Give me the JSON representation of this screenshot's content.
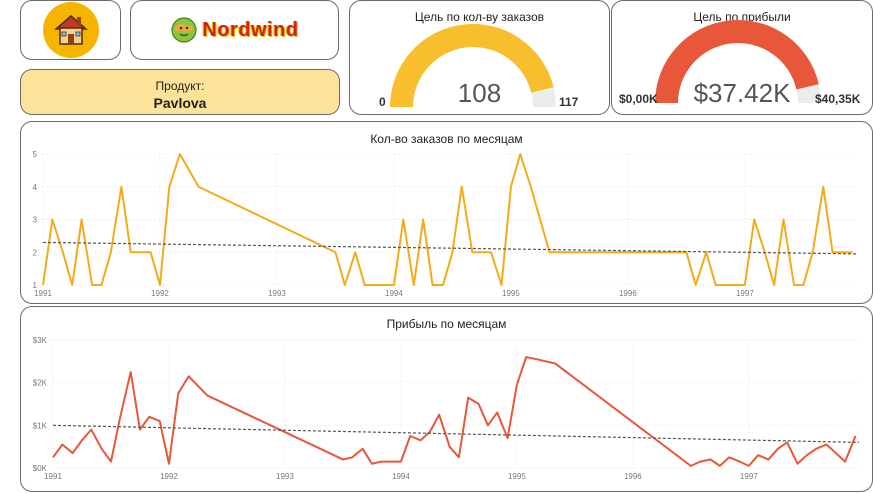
{
  "home": {
    "icon": "house-icon",
    "circle_color": "#f5b400"
  },
  "brand": {
    "name": "Nordwind",
    "icon": "globe-icon"
  },
  "product": {
    "label": "Продукт:",
    "value": "Pavlova"
  },
  "gauge_orders": {
    "title": "Цель по кол-ву заказов",
    "value": 108,
    "value_text": "108",
    "min": 0,
    "min_text": "0",
    "max": 117,
    "max_text": "117",
    "color": "#f8be2e"
  },
  "gauge_profit": {
    "title": "Цель по прибыли",
    "value": 37.42,
    "value_text": "$37.42K",
    "min": 0,
    "min_text": "$0,00K",
    "max": 40.35,
    "max_text": "$40,35K",
    "color": "#e8573a"
  },
  "chart_data": [
    {
      "type": "line",
      "title": "Кол-во заказов по месяцам",
      "xlabel": "",
      "ylabel": "",
      "x_ticks": [
        "1991",
        "1992",
        "1993",
        "1994",
        "1995",
        "1996",
        "1997"
      ],
      "y_ticks": [
        "1",
        "2",
        "3",
        "4",
        "5"
      ],
      "ylim": [
        1,
        5
      ],
      "xlim": [
        1991.0,
        1997.95
      ],
      "grid": true,
      "color": "#f2ab1a",
      "trend_line": {
        "style": "dashed",
        "start": 2.3,
        "end": 1.95
      },
      "x": [
        1991.0,
        1991.08,
        1991.17,
        1991.25,
        1991.33,
        1991.42,
        1991.5,
        1991.58,
        1991.67,
        1991.75,
        1991.83,
        1991.92,
        1992.0,
        1992.08,
        1992.17,
        1992.33,
        1993.5,
        1993.58,
        1993.67,
        1993.75,
        1993.83,
        1993.92,
        1994.0,
        1994.08,
        1994.17,
        1994.25,
        1994.33,
        1994.42,
        1994.5,
        1994.58,
        1994.67,
        1994.75,
        1994.83,
        1994.92,
        1995.0,
        1995.08,
        1995.17,
        1995.33,
        1996.5,
        1996.58,
        1996.67,
        1996.75,
        1996.83,
        1996.92,
        1997.0,
        1997.08,
        1997.17,
        1997.25,
        1997.33,
        1997.42,
        1997.5,
        1997.58,
        1997.67,
        1997.75,
        1997.83,
        1997.92
      ],
      "y": [
        1,
        3,
        2,
        1,
        3,
        1,
        1,
        2,
        4,
        2,
        2,
        2,
        1,
        4,
        5,
        4,
        2,
        1,
        2,
        1,
        1,
        1,
        1,
        3,
        1,
        3,
        1,
        1,
        2,
        4,
        2,
        2,
        2,
        1,
        4,
        5,
        4,
        2,
        2,
        1,
        2,
        1,
        1,
        1,
        1,
        3,
        2,
        1,
        3,
        1,
        1,
        2,
        4,
        2,
        2,
        2
      ]
    },
    {
      "type": "line",
      "title": "Прибыль по месяцам",
      "xlabel": "",
      "ylabel": "",
      "x_ticks": [
        "1991",
        "1992",
        "1993",
        "1994",
        "1995",
        "1996",
        "1997"
      ],
      "y_ticks": [
        "$0K",
        "$1K",
        "$2K",
        "$3K"
      ],
      "ylim": [
        0,
        3
      ],
      "xlim": [
        1991.0,
        1997.95
      ],
      "grid": true,
      "color": "#e8573a",
      "trend_line": {
        "style": "dashed",
        "start": 1.0,
        "end": 0.6
      },
      "x": [
        1991.0,
        1991.08,
        1991.17,
        1991.25,
        1991.33,
        1991.42,
        1991.5,
        1991.58,
        1991.67,
        1991.75,
        1991.83,
        1991.92,
        1992.0,
        1992.08,
        1992.17,
        1992.33,
        1993.5,
        1993.58,
        1993.67,
        1993.75,
        1993.83,
        1993.92,
        1994.0,
        1994.08,
        1994.17,
        1994.25,
        1994.33,
        1994.42,
        1994.5,
        1994.58,
        1994.67,
        1994.75,
        1994.83,
        1994.92,
        1995.0,
        1995.08,
        1995.17,
        1995.33,
        1996.5,
        1996.58,
        1996.67,
        1996.75,
        1996.83,
        1996.92,
        1997.0,
        1997.08,
        1997.17,
        1997.25,
        1997.33,
        1997.42,
        1997.5,
        1997.58,
        1997.67,
        1997.75,
        1997.83,
        1997.92
      ],
      "y": [
        0.25,
        0.55,
        0.35,
        0.65,
        0.9,
        0.45,
        0.15,
        1.2,
        2.25,
        0.9,
        1.2,
        1.1,
        0.1,
        1.75,
        2.15,
        1.7,
        0.2,
        0.25,
        0.45,
        0.1,
        0.15,
        0.15,
        0.15,
        0.75,
        0.65,
        0.85,
        1.25,
        0.5,
        0.25,
        1.65,
        1.5,
        1.0,
        1.3,
        0.7,
        1.95,
        2.6,
        2.55,
        2.45,
        0.05,
        0.15,
        0.2,
        0.05,
        0.25,
        0.15,
        0.05,
        0.3,
        0.2,
        0.45,
        0.6,
        0.1,
        0.3,
        0.45,
        0.55,
        0.35,
        0.15,
        0.75
      ]
    }
  ]
}
